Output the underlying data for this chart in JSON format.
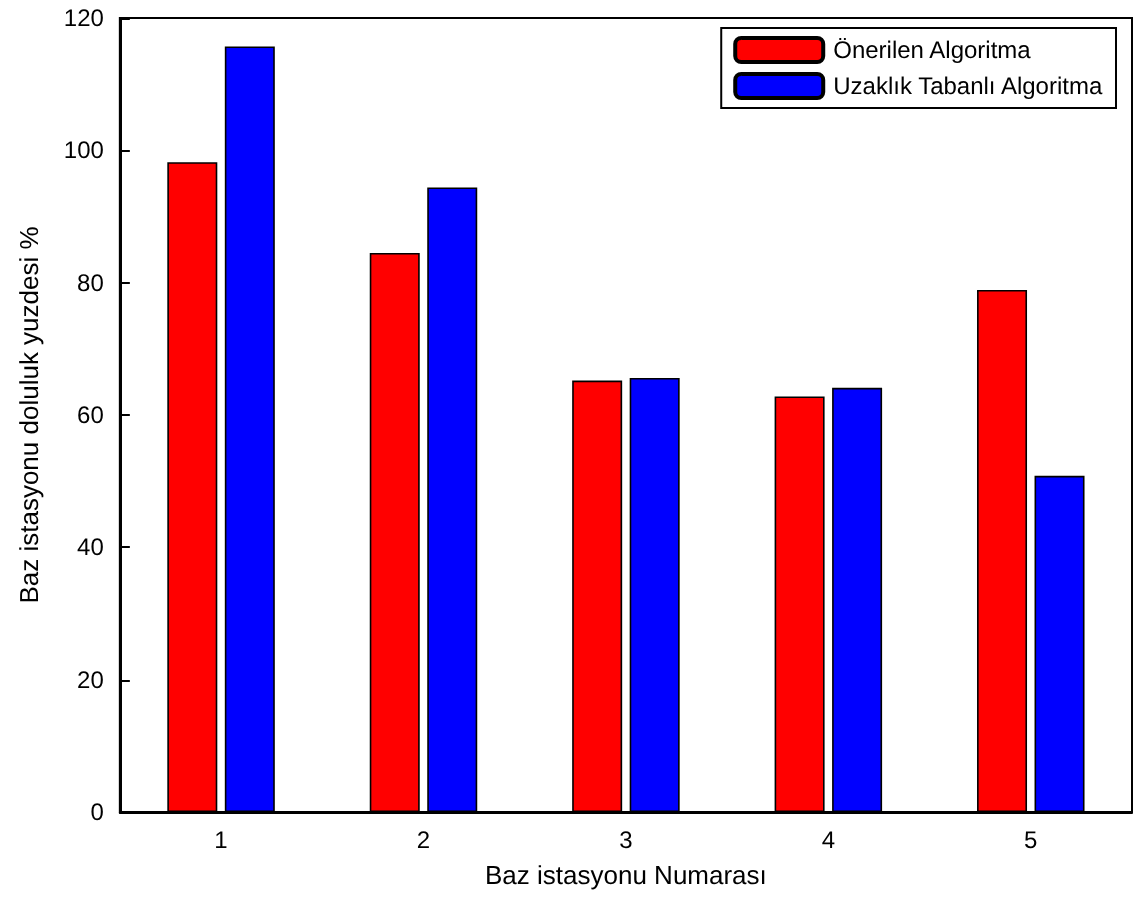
{
  "chart_data": {
    "type": "bar",
    "xlabel": "Baz istasyonu Numarası",
    "ylabel": "Baz istasyonu doluluk yuzdesi %",
    "categories": [
      "1",
      "2",
      "3",
      "4",
      "5"
    ],
    "series": [
      {
        "name": "Önerilen Algoritma",
        "color": "#ff0000",
        "values": [
          98.2,
          84.5,
          65.2,
          62.8,
          78.9
        ]
      },
      {
        "name": "Uzaklık Tabanlı Algoritma",
        "color": "#0000ff",
        "values": [
          115.7,
          94.4,
          65.6,
          64.1,
          50.8
        ]
      }
    ],
    "ylim": [
      0,
      120
    ],
    "yticks": [
      0,
      20,
      40,
      60,
      80,
      100,
      120
    ],
    "grid": false,
    "legend": "top right"
  }
}
